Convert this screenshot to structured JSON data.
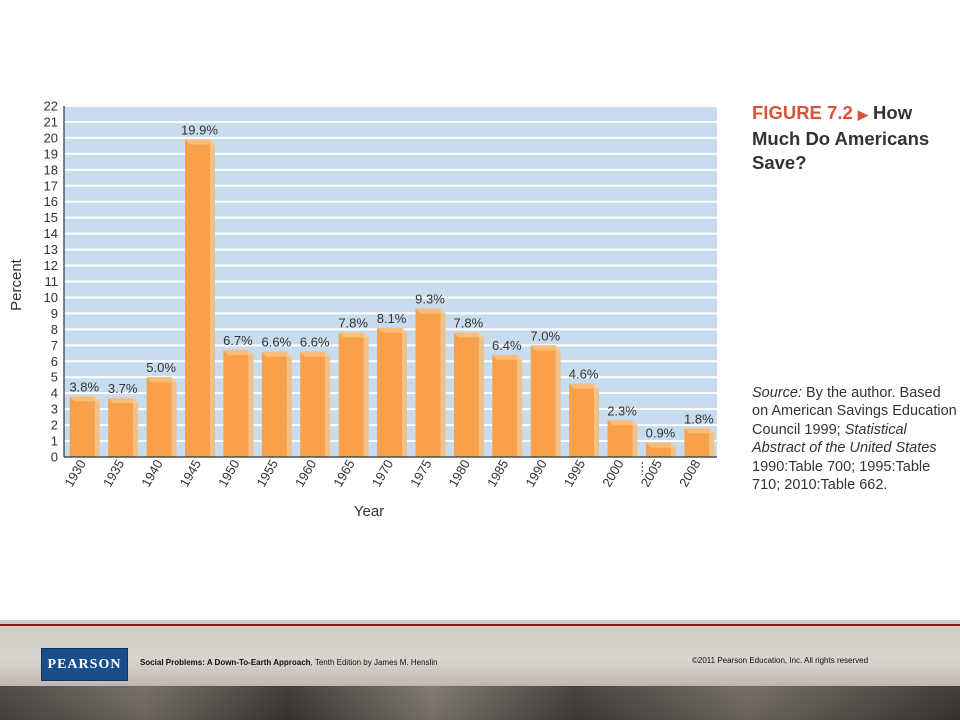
{
  "figure": {
    "label": "FIGURE 7.2",
    "arrow": "▶",
    "title": "How Much Do Americans Save?"
  },
  "source": {
    "label": "Source:",
    "text1": "By the author. Based on American Savings Education Council 1999;",
    "italic": "Statistical Abstract of the United States",
    "text2": "1990:Table 700; 1995:Table 710; 2010:Table 662."
  },
  "footer": {
    "logo": "PEARSON",
    "book_title": "Social Problems: A Down-To-Earth Approach",
    "book_rest": ", Tenth Edition by James M. Henslin",
    "copyright": "©2011 Pearson Education, Inc.  All rights reserved"
  },
  "colors": {
    "plot_bg": "#c7dcee",
    "bar_face": "#f8a14a",
    "bar_side": "#f1c18a",
    "bar_top": "#fcd09a",
    "accent": "#d9533a"
  },
  "chart_data": {
    "type": "bar",
    "categories": [
      "1930",
      "1935",
      "1940",
      "1945",
      "1950",
      "1955",
      "1960",
      "1965",
      "1970",
      "1975",
      "1980",
      "1985",
      "1990",
      "1995",
      "2000",
      "2005",
      "2008"
    ],
    "values": [
      3.8,
      3.7,
      5.0,
      19.9,
      6.7,
      6.6,
      6.6,
      7.8,
      8.1,
      9.3,
      7.8,
      6.4,
      7.0,
      4.6,
      2.3,
      0.9,
      1.8
    ],
    "data_labels": [
      "3.8%",
      "3.7%",
      "5.0%",
      "19.9%",
      "6.7%",
      "6.6%",
      "6.6%",
      "7.8%",
      "8.1%",
      "9.3%",
      "7.8%",
      "6.4%",
      "7.0%",
      "4.6%",
      "2.3%",
      "0.9%",
      "1.8%"
    ],
    "xlabel": "Year",
    "ylabel": "Percent",
    "ylim": [
      0,
      22
    ],
    "yticks": [
      0,
      1,
      2,
      3,
      4,
      5,
      6,
      7,
      8,
      9,
      10,
      11,
      12,
      13,
      14,
      15,
      16,
      17,
      18,
      19,
      20,
      21,
      22
    ],
    "grid": true,
    "axis_break_after": "2000"
  }
}
